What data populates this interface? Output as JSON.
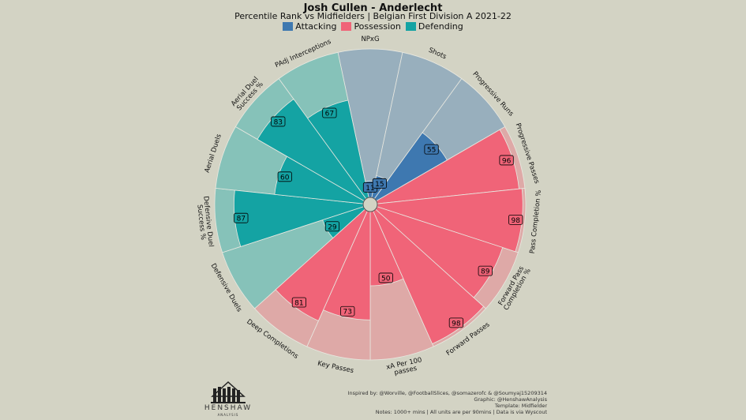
{
  "header": {
    "title": "Josh Cullen - Anderlecht",
    "subtitle": "Percentile Rank vs Midfielders | Belgian First Division A 2021-22"
  },
  "legend": [
    {
      "label": "Attacking",
      "color": "#3e78b0"
    },
    {
      "label": "Possession",
      "color": "#f06478"
    },
    {
      "label": "Defending",
      "color": "#14a3a3"
    }
  ],
  "chart_data": {
    "type": "radial-bar",
    "title": "Josh Cullen - Anderlecht",
    "subtitle": "Percentile Rank vs Midfielders | Belgian First Division A 2021-22",
    "range": [
      0,
      100
    ],
    "categories": [
      {
        "name": "NPxG",
        "value": 11,
        "group": "Attacking"
      },
      {
        "name": "Shots",
        "value": 15,
        "group": "Attacking"
      },
      {
        "name": "Progressive Runs",
        "value": 55,
        "group": "Attacking"
      },
      {
        "name": "Progressive Passes",
        "value": 96,
        "group": "Possession"
      },
      {
        "name": "Pass Completion %",
        "value": 98,
        "group": "Possession"
      },
      {
        "name": "Forward Pass Completion %",
        "value": 89,
        "group": "Possession"
      },
      {
        "name": "Forward Passes",
        "value": 98,
        "group": "Possession"
      },
      {
        "name": "xA Per 100 passes",
        "value": 50,
        "group": "Possession"
      },
      {
        "name": "Key Passes",
        "value": 73,
        "group": "Possession"
      },
      {
        "name": "Deep Completions",
        "value": 81,
        "group": "Possession"
      },
      {
        "name": "Defensive Duels",
        "value": 29,
        "group": "Defending"
      },
      {
        "name": "Defensive Duel Success %",
        "value": 87,
        "group": "Defending"
      },
      {
        "name": "Aerial Duels",
        "value": 60,
        "group": "Defending"
      },
      {
        "name": "Aerial Duel Success %",
        "value": 83,
        "group": "Defending"
      },
      {
        "name": "PAdj Interceptions",
        "value": 67,
        "group": "Defending"
      }
    ],
    "groups": {
      "Attacking": {
        "color": "#3e78b0",
        "background": "#98afbd"
      },
      "Possession": {
        "color": "#f06478",
        "background": "#dea9a7"
      },
      "Defending": {
        "color": "#14a3a3",
        "background": "#86c2b9"
      }
    }
  },
  "logo": {
    "name": "HENSHAW",
    "sub": "ANALYSIS"
  },
  "credits": [
    "Inspired by: @Worville, @FootballSlices, @somazerofc & @Soumyaj15209314",
    "Graphic: @HenshawAnalysis",
    "Template: Midfielder",
    "Notes: 1000+ mins | All units are per 90mins | Data is via Wyscout"
  ]
}
